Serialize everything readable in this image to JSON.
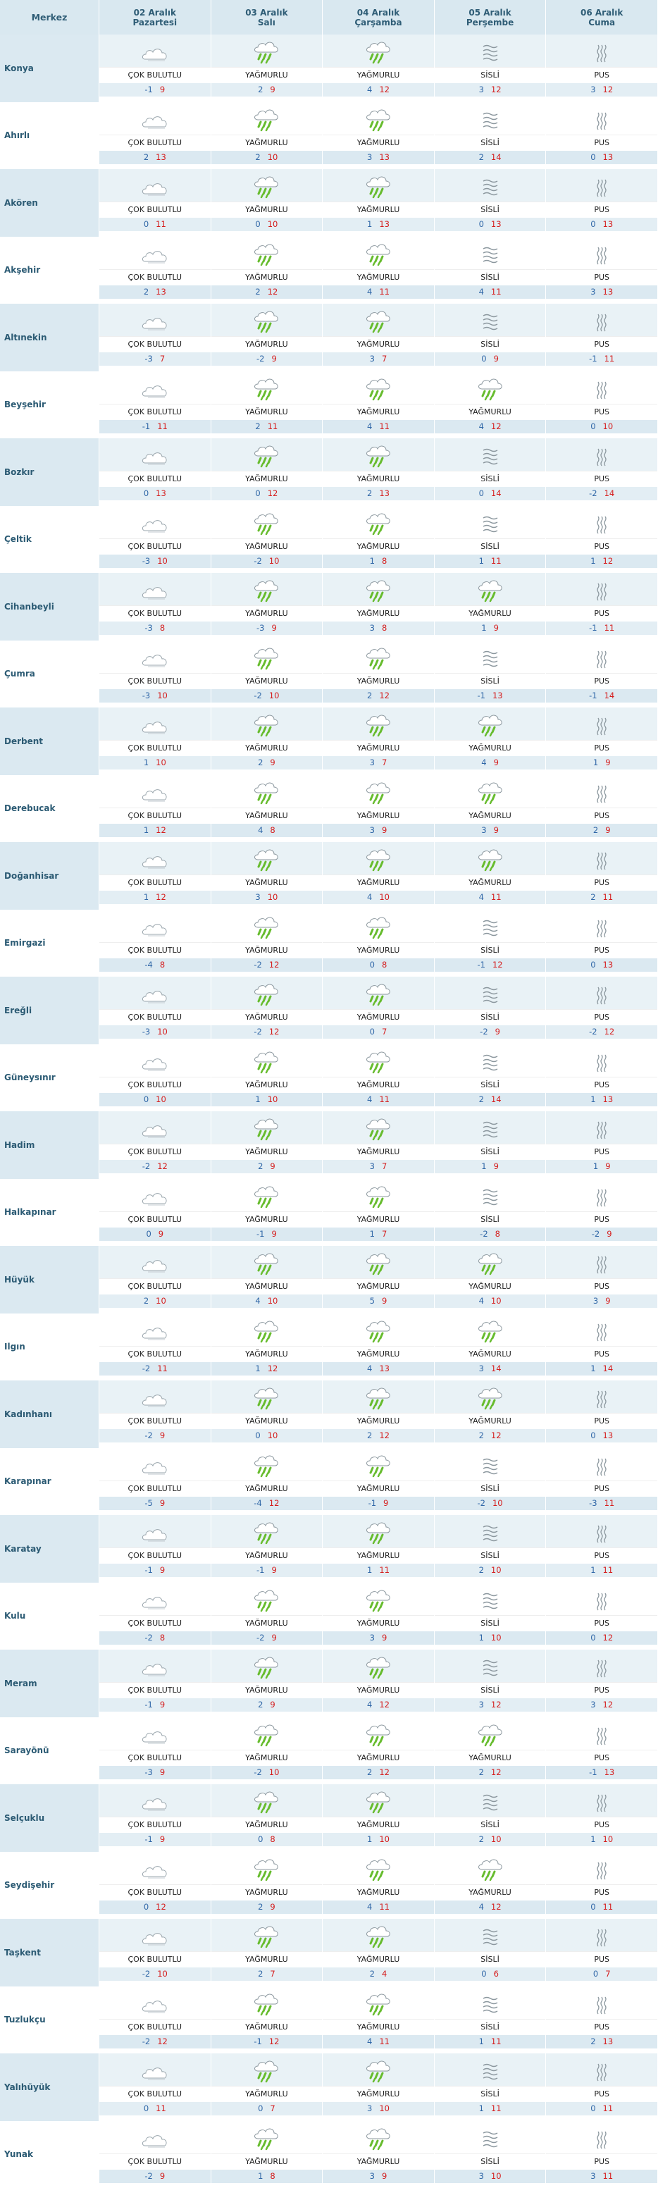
{
  "header": {
    "center_label": "Merkez",
    "days": [
      {
        "date": "02 Aralık",
        "weekday": "Pazartesi"
      },
      {
        "date": "03 Aralık",
        "weekday": "Salı"
      },
      {
        "date": "04 Aralık",
        "weekday": "Çarşamba"
      },
      {
        "date": "05 Aralık",
        "weekday": "Perşembe"
      },
      {
        "date": "06 Aralık",
        "weekday": "Cuma"
      }
    ]
  },
  "conditions": {
    "cloudy": {
      "label": "ÇOK BULUTLU",
      "icon": "cloudy-icon"
    },
    "rain": {
      "label": "YAĞMURLU",
      "icon": "rain-icon"
    },
    "fog": {
      "label": "SİSLİ",
      "icon": "fog-icon"
    },
    "haze": {
      "label": "PUS",
      "icon": "haze-icon"
    }
  },
  "rows": [
    {
      "name": "Konya",
      "days": [
        {
          "cond": "cloudy",
          "min": "-1",
          "max": "9"
        },
        {
          "cond": "rain",
          "min": "2",
          "max": "9"
        },
        {
          "cond": "rain",
          "min": "4",
          "max": "12"
        },
        {
          "cond": "fog",
          "min": "3",
          "max": "12"
        },
        {
          "cond": "haze",
          "min": "3",
          "max": "12"
        }
      ]
    },
    {
      "name": "Ahırlı",
      "days": [
        {
          "cond": "cloudy",
          "min": "2",
          "max": "13"
        },
        {
          "cond": "rain",
          "min": "2",
          "max": "10"
        },
        {
          "cond": "rain",
          "min": "3",
          "max": "13"
        },
        {
          "cond": "fog",
          "min": "2",
          "max": "14"
        },
        {
          "cond": "haze",
          "min": "0",
          "max": "13"
        }
      ]
    },
    {
      "name": "Akören",
      "days": [
        {
          "cond": "cloudy",
          "min": "0",
          "max": "11"
        },
        {
          "cond": "rain",
          "min": "0",
          "max": "10"
        },
        {
          "cond": "rain",
          "min": "1",
          "max": "13"
        },
        {
          "cond": "fog",
          "min": "0",
          "max": "13"
        },
        {
          "cond": "haze",
          "min": "0",
          "max": "13"
        }
      ]
    },
    {
      "name": "Akşehir",
      "days": [
        {
          "cond": "cloudy",
          "min": "2",
          "max": "13"
        },
        {
          "cond": "rain",
          "min": "2",
          "max": "12"
        },
        {
          "cond": "rain",
          "min": "4",
          "max": "11"
        },
        {
          "cond": "fog",
          "min": "4",
          "max": "11"
        },
        {
          "cond": "haze",
          "min": "3",
          "max": "13"
        }
      ]
    },
    {
      "name": "Altınekin",
      "days": [
        {
          "cond": "cloudy",
          "min": "-3",
          "max": "7"
        },
        {
          "cond": "rain",
          "min": "-2",
          "max": "9"
        },
        {
          "cond": "rain",
          "min": "3",
          "max": "7"
        },
        {
          "cond": "fog",
          "min": "0",
          "max": "9"
        },
        {
          "cond": "haze",
          "min": "-1",
          "max": "11"
        }
      ]
    },
    {
      "name": "Beyşehir",
      "days": [
        {
          "cond": "cloudy",
          "min": "-1",
          "max": "11"
        },
        {
          "cond": "rain",
          "min": "2",
          "max": "11"
        },
        {
          "cond": "rain",
          "min": "4",
          "max": "11"
        },
        {
          "cond": "rain",
          "min": "4",
          "max": "12"
        },
        {
          "cond": "haze",
          "min": "0",
          "max": "10"
        }
      ]
    },
    {
      "name": "Bozkır",
      "days": [
        {
          "cond": "cloudy",
          "min": "0",
          "max": "13"
        },
        {
          "cond": "rain",
          "min": "0",
          "max": "12"
        },
        {
          "cond": "rain",
          "min": "2",
          "max": "13"
        },
        {
          "cond": "fog",
          "min": "0",
          "max": "14"
        },
        {
          "cond": "haze",
          "min": "-2",
          "max": "14"
        }
      ]
    },
    {
      "name": "Çeltik",
      "days": [
        {
          "cond": "cloudy",
          "min": "-3",
          "max": "10"
        },
        {
          "cond": "rain",
          "min": "-2",
          "max": "10"
        },
        {
          "cond": "rain",
          "min": "1",
          "max": "8"
        },
        {
          "cond": "fog",
          "min": "1",
          "max": "11"
        },
        {
          "cond": "haze",
          "min": "1",
          "max": "12"
        }
      ]
    },
    {
      "name": "Cihanbeyli",
      "days": [
        {
          "cond": "cloudy",
          "min": "-3",
          "max": "8"
        },
        {
          "cond": "rain",
          "min": "-3",
          "max": "9"
        },
        {
          "cond": "rain",
          "min": "3",
          "max": "8"
        },
        {
          "cond": "rain",
          "min": "1",
          "max": "9"
        },
        {
          "cond": "haze",
          "min": "-1",
          "max": "11"
        }
      ]
    },
    {
      "name": "Çumra",
      "days": [
        {
          "cond": "cloudy",
          "min": "-3",
          "max": "10"
        },
        {
          "cond": "rain",
          "min": "-2",
          "max": "10"
        },
        {
          "cond": "rain",
          "min": "2",
          "max": "12"
        },
        {
          "cond": "fog",
          "min": "-1",
          "max": "13"
        },
        {
          "cond": "haze",
          "min": "-1",
          "max": "14"
        }
      ]
    },
    {
      "name": "Derbent",
      "days": [
        {
          "cond": "cloudy",
          "min": "1",
          "max": "10"
        },
        {
          "cond": "rain",
          "min": "2",
          "max": "9"
        },
        {
          "cond": "rain",
          "min": "3",
          "max": "7"
        },
        {
          "cond": "rain",
          "min": "4",
          "max": "9"
        },
        {
          "cond": "haze",
          "min": "1",
          "max": "9"
        }
      ]
    },
    {
      "name": "Derebucak",
      "days": [
        {
          "cond": "cloudy",
          "min": "1",
          "max": "12"
        },
        {
          "cond": "rain",
          "min": "4",
          "max": "8"
        },
        {
          "cond": "rain",
          "min": "3",
          "max": "9"
        },
        {
          "cond": "rain",
          "min": "3",
          "max": "9"
        },
        {
          "cond": "haze",
          "min": "2",
          "max": "9"
        }
      ]
    },
    {
      "name": "Doğanhisar",
      "days": [
        {
          "cond": "cloudy",
          "min": "1",
          "max": "12"
        },
        {
          "cond": "rain",
          "min": "3",
          "max": "10"
        },
        {
          "cond": "rain",
          "min": "4",
          "max": "10"
        },
        {
          "cond": "rain",
          "min": "4",
          "max": "11"
        },
        {
          "cond": "haze",
          "min": "2",
          "max": "11"
        }
      ]
    },
    {
      "name": "Emirgazi",
      "days": [
        {
          "cond": "cloudy",
          "min": "-4",
          "max": "8"
        },
        {
          "cond": "rain",
          "min": "-2",
          "max": "12"
        },
        {
          "cond": "rain",
          "min": "0",
          "max": "8"
        },
        {
          "cond": "fog",
          "min": "-1",
          "max": "12"
        },
        {
          "cond": "haze",
          "min": "0",
          "max": "13"
        }
      ]
    },
    {
      "name": "Ereğli",
      "days": [
        {
          "cond": "cloudy",
          "min": "-3",
          "max": "10"
        },
        {
          "cond": "rain",
          "min": "-2",
          "max": "12"
        },
        {
          "cond": "rain",
          "min": "0",
          "max": "7"
        },
        {
          "cond": "fog",
          "min": "-2",
          "max": "9"
        },
        {
          "cond": "haze",
          "min": "-2",
          "max": "12"
        }
      ]
    },
    {
      "name": "Güneysınır",
      "days": [
        {
          "cond": "cloudy",
          "min": "0",
          "max": "10"
        },
        {
          "cond": "rain",
          "min": "1",
          "max": "10"
        },
        {
          "cond": "rain",
          "min": "4",
          "max": "11"
        },
        {
          "cond": "fog",
          "min": "2",
          "max": "14"
        },
        {
          "cond": "haze",
          "min": "1",
          "max": "13"
        }
      ]
    },
    {
      "name": "Hadim",
      "days": [
        {
          "cond": "cloudy",
          "min": "-2",
          "max": "12"
        },
        {
          "cond": "rain",
          "min": "2",
          "max": "9"
        },
        {
          "cond": "rain",
          "min": "3",
          "max": "7"
        },
        {
          "cond": "fog",
          "min": "1",
          "max": "9"
        },
        {
          "cond": "haze",
          "min": "1",
          "max": "9"
        }
      ]
    },
    {
      "name": "Halkapınar",
      "days": [
        {
          "cond": "cloudy",
          "min": "0",
          "max": "9"
        },
        {
          "cond": "rain",
          "min": "-1",
          "max": "9"
        },
        {
          "cond": "rain",
          "min": "1",
          "max": "7"
        },
        {
          "cond": "fog",
          "min": "-2",
          "max": "8"
        },
        {
          "cond": "haze",
          "min": "-2",
          "max": "9"
        }
      ]
    },
    {
      "name": "Hüyük",
      "days": [
        {
          "cond": "cloudy",
          "min": "2",
          "max": "10"
        },
        {
          "cond": "rain",
          "min": "4",
          "max": "10"
        },
        {
          "cond": "rain",
          "min": "5",
          "max": "9"
        },
        {
          "cond": "rain",
          "min": "4",
          "max": "10"
        },
        {
          "cond": "haze",
          "min": "3",
          "max": "9"
        }
      ]
    },
    {
      "name": "Ilgın",
      "days": [
        {
          "cond": "cloudy",
          "min": "-2",
          "max": "11"
        },
        {
          "cond": "rain",
          "min": "1",
          "max": "12"
        },
        {
          "cond": "rain",
          "min": "4",
          "max": "13"
        },
        {
          "cond": "rain",
          "min": "3",
          "max": "14"
        },
        {
          "cond": "haze",
          "min": "1",
          "max": "14"
        }
      ]
    },
    {
      "name": "Kadınhanı",
      "days": [
        {
          "cond": "cloudy",
          "min": "-2",
          "max": "9"
        },
        {
          "cond": "rain",
          "min": "0",
          "max": "10"
        },
        {
          "cond": "rain",
          "min": "2",
          "max": "12"
        },
        {
          "cond": "rain",
          "min": "2",
          "max": "12"
        },
        {
          "cond": "haze",
          "min": "0",
          "max": "13"
        }
      ]
    },
    {
      "name": "Karapınar",
      "days": [
        {
          "cond": "cloudy",
          "min": "-5",
          "max": "9"
        },
        {
          "cond": "rain",
          "min": "-4",
          "max": "12"
        },
        {
          "cond": "rain",
          "min": "-1",
          "max": "9"
        },
        {
          "cond": "fog",
          "min": "-2",
          "max": "10"
        },
        {
          "cond": "haze",
          "min": "-3",
          "max": "11"
        }
      ]
    },
    {
      "name": "Karatay",
      "days": [
        {
          "cond": "cloudy",
          "min": "-1",
          "max": "9"
        },
        {
          "cond": "rain",
          "min": "-1",
          "max": "9"
        },
        {
          "cond": "rain",
          "min": "1",
          "max": "11"
        },
        {
          "cond": "fog",
          "min": "2",
          "max": "10"
        },
        {
          "cond": "haze",
          "min": "1",
          "max": "11"
        }
      ]
    },
    {
      "name": "Kulu",
      "days": [
        {
          "cond": "cloudy",
          "min": "-2",
          "max": "8"
        },
        {
          "cond": "rain",
          "min": "-2",
          "max": "9"
        },
        {
          "cond": "rain",
          "min": "3",
          "max": "9"
        },
        {
          "cond": "fog",
          "min": "1",
          "max": "10"
        },
        {
          "cond": "haze",
          "min": "0",
          "max": "12"
        }
      ]
    },
    {
      "name": "Meram",
      "days": [
        {
          "cond": "cloudy",
          "min": "-1",
          "max": "9"
        },
        {
          "cond": "rain",
          "min": "2",
          "max": "9"
        },
        {
          "cond": "rain",
          "min": "4",
          "max": "12"
        },
        {
          "cond": "fog",
          "min": "3",
          "max": "12"
        },
        {
          "cond": "haze",
          "min": "3",
          "max": "12"
        }
      ]
    },
    {
      "name": "Sarayönü",
      "days": [
        {
          "cond": "cloudy",
          "min": "-3",
          "max": "9"
        },
        {
          "cond": "rain",
          "min": "-2",
          "max": "10"
        },
        {
          "cond": "rain",
          "min": "2",
          "max": "12"
        },
        {
          "cond": "rain",
          "min": "2",
          "max": "12"
        },
        {
          "cond": "haze",
          "min": "-1",
          "max": "13"
        }
      ]
    },
    {
      "name": "Selçuklu",
      "days": [
        {
          "cond": "cloudy",
          "min": "-1",
          "max": "9"
        },
        {
          "cond": "rain",
          "min": "0",
          "max": "8"
        },
        {
          "cond": "rain",
          "min": "1",
          "max": "10"
        },
        {
          "cond": "fog",
          "min": "2",
          "max": "10"
        },
        {
          "cond": "haze",
          "min": "1",
          "max": "10"
        }
      ]
    },
    {
      "name": "Seydişehir",
      "days": [
        {
          "cond": "cloudy",
          "min": "0",
          "max": "12"
        },
        {
          "cond": "rain",
          "min": "2",
          "max": "9"
        },
        {
          "cond": "rain",
          "min": "4",
          "max": "11"
        },
        {
          "cond": "rain",
          "min": "4",
          "max": "12"
        },
        {
          "cond": "haze",
          "min": "0",
          "max": "11"
        }
      ]
    },
    {
      "name": "Taşkent",
      "days": [
        {
          "cond": "cloudy",
          "min": "-2",
          "max": "10"
        },
        {
          "cond": "rain",
          "min": "2",
          "max": "7"
        },
        {
          "cond": "rain",
          "min": "2",
          "max": "4"
        },
        {
          "cond": "fog",
          "min": "0",
          "max": "6"
        },
        {
          "cond": "haze",
          "min": "0",
          "max": "7"
        }
      ]
    },
    {
      "name": "Tuzlukçu",
      "days": [
        {
          "cond": "cloudy",
          "min": "-2",
          "max": "12"
        },
        {
          "cond": "rain",
          "min": "-1",
          "max": "12"
        },
        {
          "cond": "rain",
          "min": "4",
          "max": "11"
        },
        {
          "cond": "fog",
          "min": "1",
          "max": "11"
        },
        {
          "cond": "haze",
          "min": "2",
          "max": "13"
        }
      ]
    },
    {
      "name": "Yalıhüyük",
      "days": [
        {
          "cond": "cloudy",
          "min": "0",
          "max": "11"
        },
        {
          "cond": "rain",
          "min": "0",
          "max": "7"
        },
        {
          "cond": "rain",
          "min": "3",
          "max": "10"
        },
        {
          "cond": "fog",
          "min": "1",
          "max": "11"
        },
        {
          "cond": "haze",
          "min": "0",
          "max": "11"
        }
      ]
    },
    {
      "name": "Yunak",
      "days": [
        {
          "cond": "cloudy",
          "min": "-2",
          "max": "9"
        },
        {
          "cond": "rain",
          "min": "1",
          "max": "8"
        },
        {
          "cond": "rain",
          "min": "3",
          "max": "9"
        },
        {
          "cond": "fog",
          "min": "3",
          "max": "10"
        },
        {
          "cond": "haze",
          "min": "3",
          "max": "11"
        }
      ]
    }
  ]
}
